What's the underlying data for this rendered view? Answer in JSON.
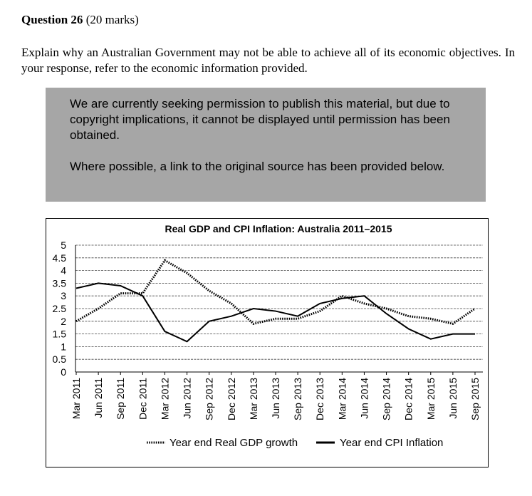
{
  "question": {
    "number_label": "Question 26",
    "marks_label": "(20 marks)",
    "prompt": "Explain why an Australian Government may not be able to achieve all of its economic objectives. In your response, refer to the economic information provided."
  },
  "notice": {
    "paragraph1": "We are currently seeking permission to publish this material, but due to copyright implications, it cannot be displayed until permission has been obtained.",
    "paragraph2": "Where possible, a link to the original source has been provided below."
  },
  "chart_data": {
    "type": "line",
    "title": "Real GDP and CPI Inflation: Australia 2011–2015",
    "xlabel": "",
    "ylabel": "",
    "ylim": [
      0,
      5
    ],
    "yticks": [
      "0",
      "0.5",
      "1",
      "1.5",
      "2",
      "2.5",
      "3",
      "3.5",
      "4",
      "4.5",
      "5"
    ],
    "categories": [
      "Mar 2011",
      "Jun 2011",
      "Sep 2011",
      "Dec 2011",
      "Mar 2012",
      "Jun 2012",
      "Sep 2012",
      "Dec 2012",
      "Mar 2013",
      "Jun 2013",
      "Sep 2013",
      "Dec 2013",
      "Mar 2014",
      "Jun 2014",
      "Sep 2014",
      "Dec 2014",
      "Mar 2015",
      "Jun 2015",
      "Sep 2015"
    ],
    "series": [
      {
        "name": "Year end Real GDP growth",
        "style": "dotted",
        "values": [
          2.0,
          2.5,
          3.1,
          3.1,
          4.4,
          3.9,
          3.2,
          2.7,
          1.9,
          2.1,
          2.1,
          2.4,
          3.0,
          2.7,
          2.5,
          2.2,
          2.1,
          1.9,
          2.5
        ]
      },
      {
        "name": "Year end CPI Inflation",
        "style": "solid",
        "values": [
          3.3,
          3.5,
          3.4,
          3.0,
          1.6,
          1.2,
          2.0,
          2.2,
          2.5,
          2.4,
          2.2,
          2.7,
          2.9,
          3.0,
          2.3,
          1.7,
          1.3,
          1.5,
          1.5
        ]
      }
    ],
    "grid": true,
    "legend_position": "bottom"
  }
}
